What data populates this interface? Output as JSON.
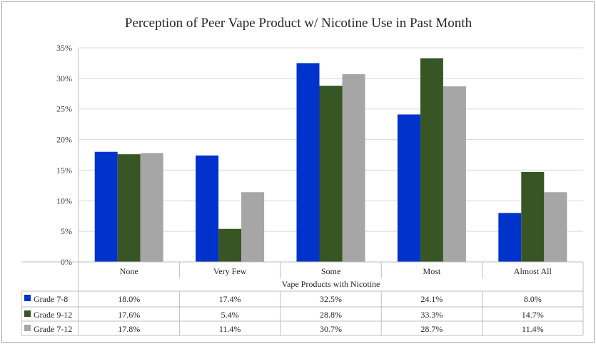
{
  "chart_data": {
    "type": "bar",
    "title": "Perception of Peer Vape Product w/ Nicotine Use in Past Month",
    "xlabel": "Vape Products with Nicotine",
    "ylabel": "",
    "ylim": [
      0,
      35
    ],
    "ytick_values": [
      0,
      5,
      10,
      15,
      20,
      25,
      30,
      35
    ],
    "ytick_labels": [
      "0%",
      "5%",
      "10%",
      "15%",
      "20%",
      "25%",
      "30%",
      "35%"
    ],
    "categories": [
      "None",
      "Very Few",
      "Some",
      "Most",
      "Almost All"
    ],
    "series": [
      {
        "name": "Grade  7-8",
        "color": "#0033cc",
        "values": [
          18.0,
          17.4,
          32.5,
          24.1,
          8.0
        ],
        "labels": [
          "18.0%",
          "17.4%",
          "32.5%",
          "24.1%",
          "8.0%"
        ]
      },
      {
        "name": "Grade  9-12",
        "color": "#375623",
        "values": [
          17.6,
          5.4,
          28.8,
          33.3,
          14.7
        ],
        "labels": [
          "17.6%",
          "5.4%",
          "28.8%",
          "33.3%",
          "14.7%"
        ]
      },
      {
        "name": "Grade  7-12",
        "color": "#a6a6a6",
        "values": [
          17.8,
          11.4,
          30.7,
          28.7,
          11.4
        ],
        "labels": [
          "17.8%",
          "11.4%",
          "30.7%",
          "28.7%",
          "11.4%"
        ]
      }
    ],
    "grid": true,
    "legend": "data table below chart"
  }
}
